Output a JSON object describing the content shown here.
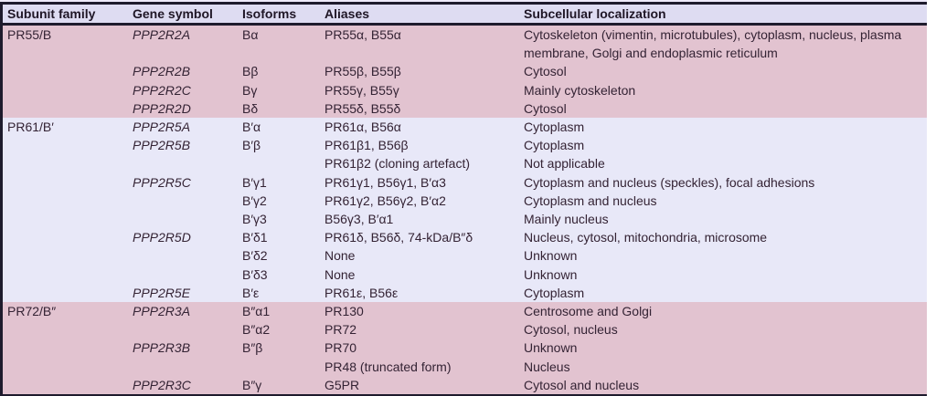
{
  "colors": {
    "pink": "#e2c3d0",
    "lavender": "#e8e8f8",
    "header_bg": "#dedcf2",
    "rule": "#1e1b2d",
    "text": "#342334",
    "text_header": "#1f1626",
    "strip_top": "#eeeafa",
    "strip_bottom": "#dce2f4"
  },
  "table": {
    "headers": [
      "Subunit family",
      "Gene symbol",
      "Isoforms",
      "Aliases",
      "Subcellular localization"
    ],
    "sections": [
      {
        "tone": "pink",
        "rows": [
          {
            "family": "PR55/B",
            "gene": "PPP2R2A",
            "isoform": "Bα",
            "aliases": "PR55α, B55α",
            "localization": "Cytoskeleton (vimentin, microtubules), cytoplasm, nucleus, plasma membrane, Golgi and endoplasmic reticulum"
          },
          {
            "gene": "PPP2R2B",
            "isoform": "Bβ",
            "aliases": "PR55β, B55β",
            "localization": "Cytosol"
          },
          {
            "gene": "PPP2R2C",
            "isoform": "Bγ",
            "aliases": "PR55γ, B55γ",
            "localization": "Mainly cytoskeleton"
          },
          {
            "gene": "PPP2R2D",
            "isoform": "Bδ",
            "aliases": "PR55δ, B55δ",
            "localization": "Cytosol"
          }
        ]
      },
      {
        "tone": "lavender",
        "rows": [
          {
            "family": "PR61/B′",
            "gene": "PPP2R5A",
            "isoform": "B′α",
            "aliases": "PR61α, B56α",
            "localization": "Cytoplasm"
          },
          {
            "gene": "PPP2R5B",
            "isoform": "B′β",
            "aliases": "PR61β1, B56β",
            "localization": "Cytoplasm"
          },
          {
            "aliases": "PR61β2 (cloning artefact)",
            "localization": "Not applicable"
          },
          {
            "gene": "PPP2R5C",
            "isoform": "B′γ1",
            "aliases": "PR61γ1, B56γ1, B′α3",
            "localization": "Cytoplasm and nucleus (speckles), focal adhesions"
          },
          {
            "isoform": "B′γ2",
            "aliases": "PR61γ2, B56γ2, B′α2",
            "localization": "Cytoplasm and nucleus"
          },
          {
            "isoform": "B′γ3",
            "aliases": "B56γ3, B′α1",
            "localization": "Mainly nucleus"
          },
          {
            "gene": "PPP2R5D",
            "isoform": "B′δ1",
            "aliases": "PR61δ, B56δ, 74-kDa/B″δ",
            "localization": "Nucleus, cytosol, mitochondria, microsome"
          },
          {
            "isoform": "B′δ2",
            "aliases": "None",
            "localization": "Unknown"
          },
          {
            "isoform": "B′δ3",
            "aliases": "None",
            "localization": "Unknown"
          },
          {
            "gene": "PPP2R5E",
            "isoform": "B′ε",
            "aliases": "PR61ε, B56ε",
            "localization": "Cytoplasm"
          }
        ]
      },
      {
        "tone": "pink",
        "rows": [
          {
            "family": "PR72/B″",
            "gene": "PPP2R3A",
            "isoform": "B″α1",
            "aliases": "PR130",
            "localization": "Centrosome and Golgi"
          },
          {
            "isoform": "B″α2",
            "aliases": "PR72",
            "localization": "Cytosol, nucleus"
          },
          {
            "gene": "PPP2R3B",
            "isoform": "B″β",
            "aliases": "PR70",
            "localization": "Unknown"
          },
          {
            "aliases": "PR48 (truncated form)",
            "localization": "Nucleus"
          },
          {
            "gene": "PPP2R3C",
            "isoform": "B″γ",
            "aliases": "G5PR",
            "localization": "Cytosol and nucleus"
          }
        ]
      }
    ]
  }
}
